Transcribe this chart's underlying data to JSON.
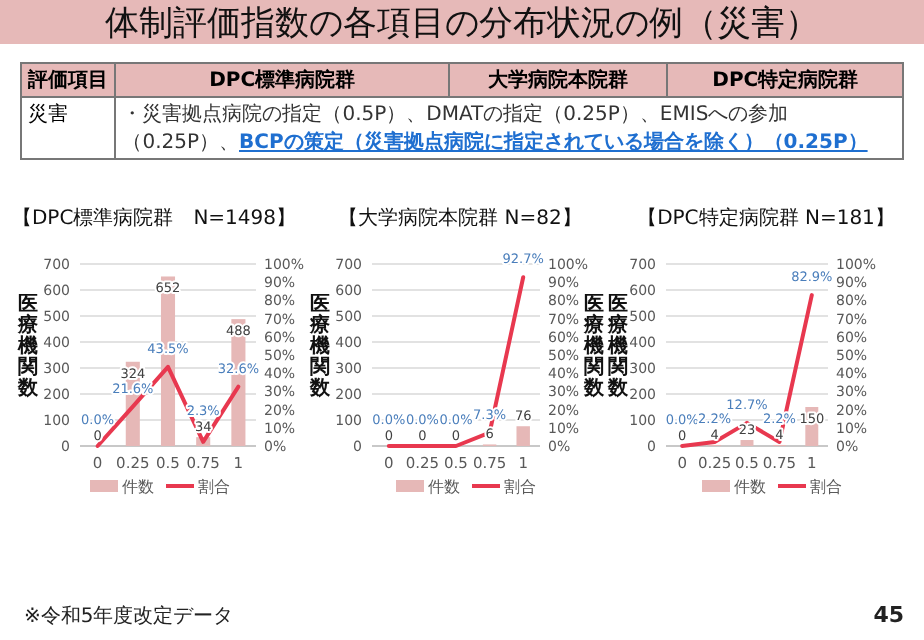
{
  "chart_data": [
    {
      "type": "other",
      "title": "体制評価指数の各項目の分布状況の例（災害）",
      "annotations": [
        "評価項目",
        "DPC標準病院群",
        "大学病院本院群",
        "DPC特定病院群",
        "災害",
        "・災害拠点病院の指定（0.5P）、DMATの指定（0.25P）、EMISへの参加（0.25P）、",
        "BCPの策定（災害拠点病院に指定されている場合を除く）（0.25P）",
        "※令和5年度改定データ",
        "45"
      ]
    },
    {
      "type": "bar",
      "title": "【DPC標準病院群　N=1498】",
      "categories": [
        "0",
        "0.25",
        "0.5",
        "0.75",
        "1"
      ],
      "ylabel": "医療機関数",
      "ylim": [
        0,
        700
      ],
      "yticks": [
        0,
        100,
        200,
        300,
        400,
        500,
        600,
        700
      ],
      "y2lim": [
        0,
        100
      ],
      "y2ticks": [
        {
          "value": 0,
          "label": "0%"
        },
        {
          "value": 10,
          "label": "10%"
        },
        {
          "value": 20,
          "label": "20%"
        },
        {
          "value": 30,
          "label": "30%"
        },
        {
          "value": 40,
          "label": "40%"
        },
        {
          "value": 50,
          "label": "50%"
        },
        {
          "value": 60,
          "label": "60%"
        },
        {
          "value": 70,
          "label": "70%"
        },
        {
          "value": 80,
          "label": "80%"
        },
        {
          "value": 90,
          "label": "90%"
        },
        {
          "value": 100,
          "label": "100%"
        }
      ],
      "grid": "y",
      "legend": "bottom",
      "series": [
        {
          "name": "件数",
          "type": "bar",
          "color": "#e6b8b7",
          "values": [
            0,
            324,
            652,
            34,
            488
          ],
          "value_labels": [
            "0",
            "324",
            "652",
            "34",
            "488"
          ]
        },
        {
          "name": "割合",
          "type": "line",
          "axis": "y2",
          "color": "#e8384f",
          "values": [
            0,
            21.6,
            43.5,
            2.3,
            32.6
          ],
          "value_labels": [
            "0.0%",
            "21.6%",
            "43.5%",
            "2.3%",
            "32.6%"
          ]
        }
      ]
    },
    {
      "type": "bar",
      "title": "【大学病院本院群 N=82】",
      "categories": [
        "0",
        "0.25",
        "0.5",
        "0.75",
        "1"
      ],
      "ylabel": "医療機関数",
      "y2label": "医療機関数",
      "ylim": [
        0,
        700
      ],
      "yticks": [
        0,
        100,
        200,
        300,
        400,
        500,
        600,
        700
      ],
      "y2lim": [
        0,
        100
      ],
      "y2ticks": [
        {
          "value": 0,
          "label": "0%"
        },
        {
          "value": 10,
          "label": "10%"
        },
        {
          "value": 20,
          "label": "20%"
        },
        {
          "value": 30,
          "label": "30%"
        },
        {
          "value": 40,
          "label": "40%"
        },
        {
          "value": 50,
          "label": "50%"
        },
        {
          "value": 60,
          "label": "60%"
        },
        {
          "value": 70,
          "label": "70%"
        },
        {
          "value": 80,
          "label": "80%"
        },
        {
          "value": 90,
          "label": "90%"
        },
        {
          "value": 100,
          "label": "100%"
        }
      ],
      "grid": "y",
      "legend": "bottom",
      "series": [
        {
          "name": "件数",
          "type": "bar",
          "color": "#e6b8b7",
          "values": [
            0,
            0,
            0,
            6,
            76
          ],
          "value_labels": [
            "0",
            "0",
            "0",
            "6",
            "76"
          ]
        },
        {
          "name": "割合",
          "type": "line",
          "axis": "y2",
          "color": "#e8384f",
          "values": [
            0,
            0,
            0,
            7.3,
            92.7
          ],
          "value_labels": [
            "0.0%",
            "0.0%",
            "0.0%",
            "7.3%",
            "92.7%"
          ]
        }
      ]
    },
    {
      "type": "bar",
      "title": "【DPC特定病院群 N=181】",
      "categories": [
        "0",
        "0.25",
        "0.5",
        "0.75",
        "1"
      ],
      "ylabel": "医療機関数",
      "ylim": [
        0,
        700
      ],
      "yticks": [
        0,
        100,
        200,
        300,
        400,
        500,
        600,
        700
      ],
      "y2lim": [
        0,
        100
      ],
      "y2ticks": [
        {
          "value": 0,
          "label": "0%"
        },
        {
          "value": 10,
          "label": "10%"
        },
        {
          "value": 20,
          "label": "20%"
        },
        {
          "value": 30,
          "label": "30%"
        },
        {
          "value": 40,
          "label": "40%"
        },
        {
          "value": 50,
          "label": "50%"
        },
        {
          "value": 60,
          "label": "60%"
        },
        {
          "value": 70,
          "label": "70%"
        },
        {
          "value": 80,
          "label": "80%"
        },
        {
          "value": 90,
          "label": "90%"
        },
        {
          "value": 100,
          "label": "100%"
        }
      ],
      "grid": "y",
      "legend": "bottom",
      "series": [
        {
          "name": "件数",
          "type": "bar",
          "color": "#e6b8b7",
          "values": [
            0,
            4,
            23,
            4,
            150
          ],
          "value_labels": [
            "0",
            "4",
            "23",
            "4",
            "150"
          ]
        },
        {
          "name": "割合",
          "type": "line",
          "axis": "y2",
          "color": "#e8384f",
          "values": [
            0,
            2.2,
            12.7,
            2.2,
            82.9
          ],
          "value_labels": [
            "0.0%",
            "2.2%",
            "12.7%",
            "2.2%",
            "82.9%"
          ]
        }
      ]
    }
  ]
}
